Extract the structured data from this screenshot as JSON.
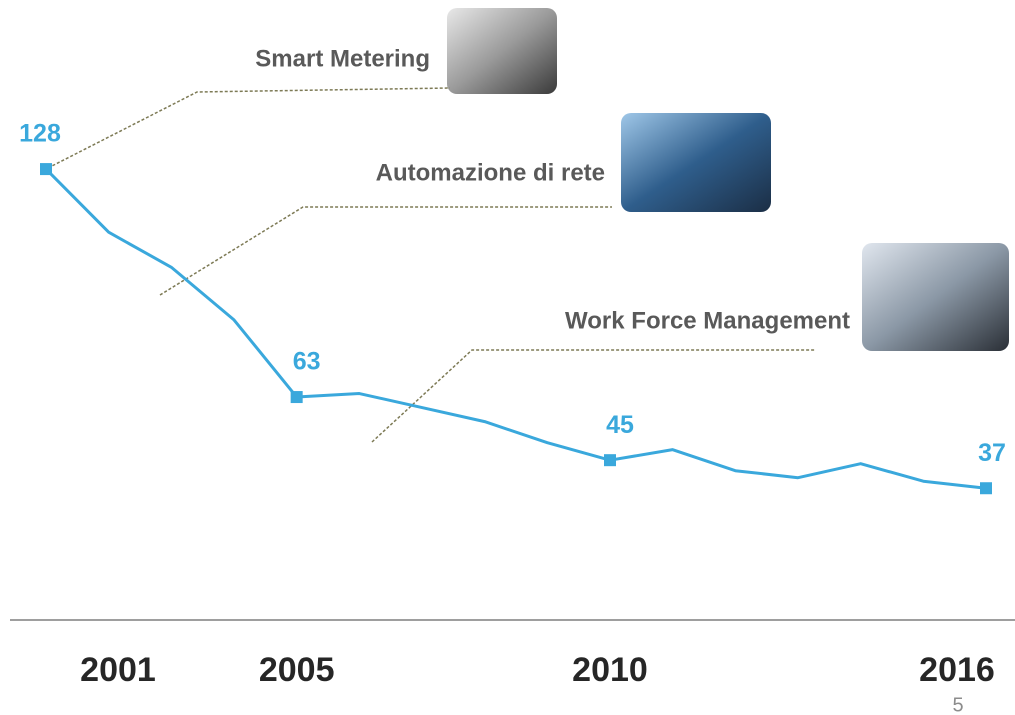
{
  "chart_data": {
    "type": "line",
    "x": [
      2001,
      2002,
      2003,
      2004,
      2005,
      2006,
      2007,
      2008,
      2009,
      2010,
      2011,
      2012,
      2013,
      2014,
      2015,
      2016
    ],
    "series": [
      {
        "color": "#3aa8dc",
        "values": [
          128,
          110,
          100,
          85,
          63,
          64,
          60,
          56,
          50,
          45,
          48,
          42,
          40,
          44,
          39,
          37
        ]
      }
    ],
    "xlim": [
      2001,
      2016
    ],
    "xticks": [
      2001,
      2005,
      2010,
      2016
    ],
    "ylim": [
      0,
      140
    ],
    "annotations": [
      "Smart Metering",
      "Automazione di rete",
      "Work Force Management"
    ]
  },
  "page_number": "5"
}
